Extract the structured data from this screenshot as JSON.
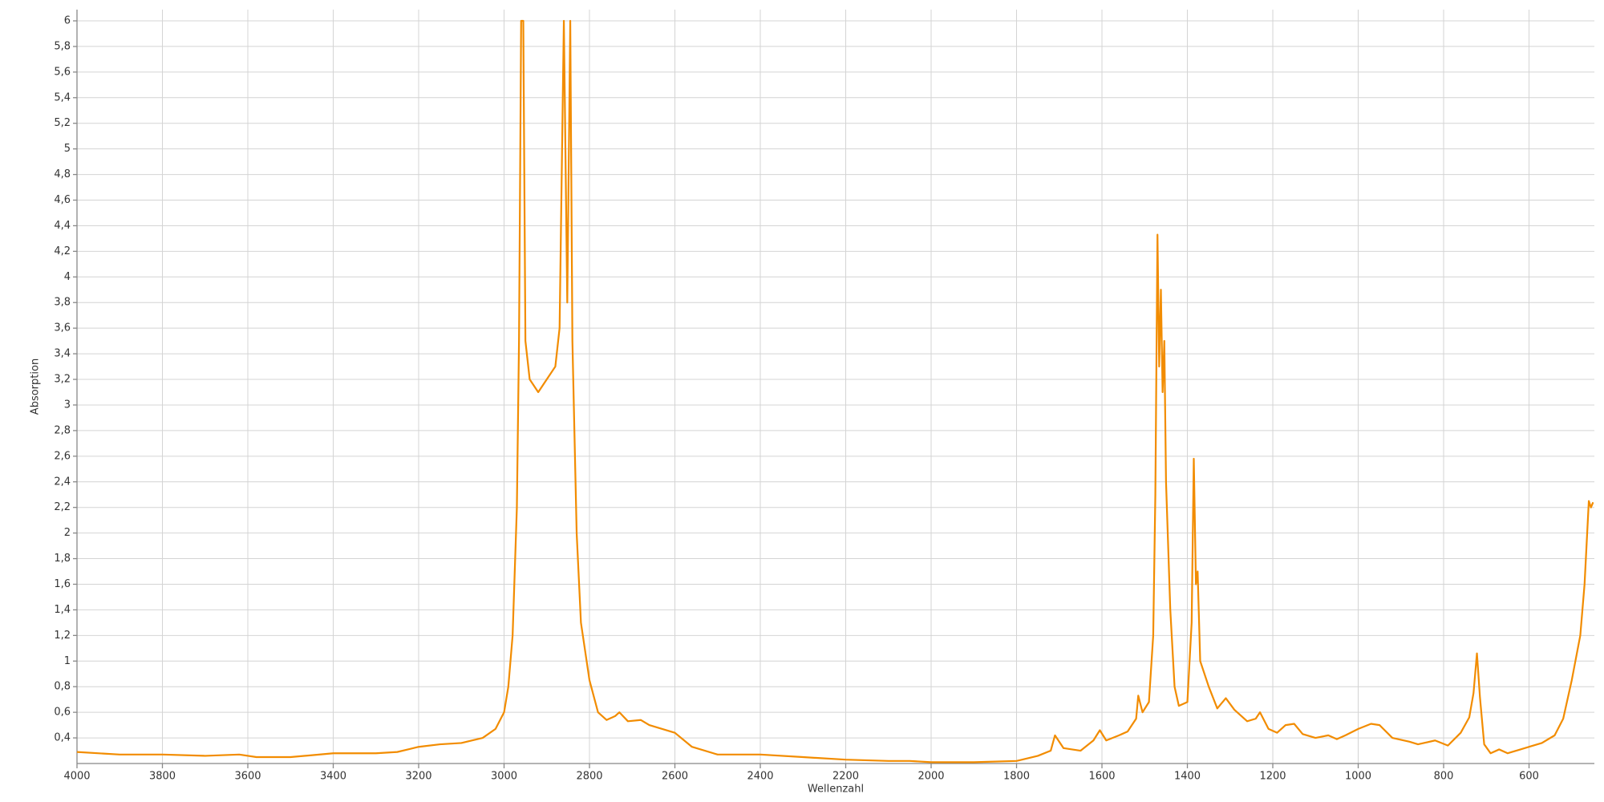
{
  "chart_data": {
    "type": "line",
    "x_label": "Wellenzahl",
    "y_label": "Absorption",
    "color": "#f28c00",
    "grid": true,
    "xlim": [
      4000,
      447
    ],
    "ylim": [
      0.2,
      6
    ],
    "xticks": [
      4000,
      3800,
      3600,
      3400,
      3200,
      3000,
      2800,
      2600,
      2400,
      2200,
      2000,
      1800,
      1600,
      1400,
      1200,
      1000,
      800,
      600
    ],
    "yticks": [
      {
        "value": 0.4,
        "label": "0,4"
      },
      {
        "value": 0.6,
        "label": "0,6"
      },
      {
        "value": 0.8,
        "label": "0,8"
      },
      1,
      {
        "value": 1.2,
        "label": "1,2"
      },
      {
        "value": 1.4,
        "label": "1,4"
      },
      {
        "value": 1.6,
        "label": "1,6"
      },
      {
        "value": 1.8,
        "label": "1,8"
      },
      2,
      {
        "value": 2.2,
        "label": "2,2"
      },
      {
        "value": 2.4,
        "label": "2,4"
      },
      {
        "value": 2.6,
        "label": "2,6"
      },
      {
        "value": 2.8,
        "label": "2,8"
      },
      3,
      {
        "value": 3.2,
        "label": "3,2"
      },
      {
        "value": 3.4,
        "label": "3,4"
      },
      {
        "value": 3.6,
        "label": "3,6"
      },
      {
        "value": 3.8,
        "label": "3,8"
      },
      4,
      {
        "value": 4.2,
        "label": "4,2"
      },
      {
        "value": 4.4,
        "label": "4,4"
      },
      {
        "value": 4.6,
        "label": "4,6"
      },
      {
        "value": 4.8,
        "label": "4,8"
      },
      5,
      {
        "value": 5.2,
        "label": "5,2"
      },
      {
        "value": 5.4,
        "label": "5,4"
      },
      {
        "value": 5.6,
        "label": "5,6"
      },
      {
        "value": 5.8,
        "label": "5,8"
      },
      6
    ],
    "x": [
      4000,
      3900,
      3800,
      3700,
      3620,
      3580,
      3500,
      3400,
      3300,
      3250,
      3200,
      3150,
      3100,
      3050,
      3020,
      3000,
      2990,
      2980,
      2970,
      2965,
      2960,
      2955,
      2950,
      2940,
      2930,
      2920,
      2900,
      2880,
      2870,
      2860,
      2852,
      2845,
      2840,
      2830,
      2820,
      2800,
      2780,
      2760,
      2740,
      2730,
      2710,
      2680,
      2660,
      2600,
      2560,
      2500,
      2400,
      2300,
      2200,
      2100,
      2050,
      2000,
      1900,
      1800,
      1750,
      1720,
      1710,
      1690,
      1650,
      1620,
      1605,
      1590,
      1560,
      1540,
      1520,
      1515,
      1505,
      1490,
      1480,
      1475,
      1470,
      1466,
      1462,
      1458,
      1454,
      1450,
      1440,
      1430,
      1420,
      1400,
      1390,
      1385,
      1380,
      1376,
      1370,
      1350,
      1330,
      1310,
      1290,
      1260,
      1240,
      1230,
      1210,
      1190,
      1170,
      1150,
      1130,
      1100,
      1070,
      1050,
      1030,
      1000,
      970,
      950,
      920,
      880,
      860,
      820,
      790,
      760,
      740,
      730,
      722,
      715,
      705,
      690,
      670,
      650,
      620,
      600,
      570,
      540,
      520,
      500,
      480,
      470,
      460,
      455,
      450
    ],
    "values": [
      0.29,
      0.27,
      0.27,
      0.26,
      0.27,
      0.25,
      0.25,
      0.28,
      0.28,
      0.29,
      0.33,
      0.35,
      0.36,
      0.4,
      0.47,
      0.6,
      0.8,
      1.2,
      2.2,
      3.5,
      6,
      6,
      3.5,
      3.2,
      3.15,
      3.1,
      3.2,
      3.3,
      3.6,
      6,
      3.8,
      6,
      3.5,
      2.0,
      1.3,
      0.85,
      0.6,
      0.54,
      0.57,
      0.6,
      0.53,
      0.54,
      0.5,
      0.44,
      0.33,
      0.27,
      0.27,
      0.25,
      0.23,
      0.22,
      0.22,
      0.21,
      0.21,
      0.22,
      0.26,
      0.3,
      0.42,
      0.32,
      0.3,
      0.38,
      0.46,
      0.38,
      0.42,
      0.45,
      0.55,
      0.73,
      0.6,
      0.68,
      1.2,
      2.3,
      4.33,
      3.3,
      3.9,
      3.1,
      3.5,
      2.4,
      1.4,
      0.8,
      0.65,
      0.68,
      1.3,
      2.58,
      1.6,
      1.7,
      1.0,
      0.8,
      0.63,
      0.71,
      0.62,
      0.53,
      0.55,
      0.6,
      0.47,
      0.44,
      0.5,
      0.51,
      0.43,
      0.4,
      0.42,
      0.39,
      0.42,
      0.47,
      0.51,
      0.5,
      0.4,
      0.37,
      0.35,
      0.38,
      0.34,
      0.44,
      0.56,
      0.75,
      1.06,
      0.72,
      0.35,
      0.28,
      0.31,
      0.28,
      0.31,
      0.33,
      0.36,
      0.42,
      0.55,
      0.85,
      1.2,
      1.6,
      2.25,
      2.2,
      2.24
    ]
  }
}
